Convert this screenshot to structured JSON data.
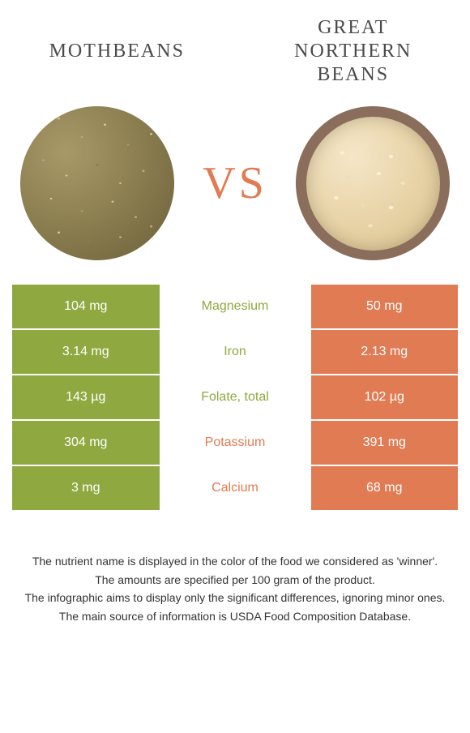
{
  "titles": {
    "left": "MOTHBEANS",
    "right": "GREAT NORTHERN BEANS"
  },
  "vs_label": "VS",
  "colors": {
    "left_bar": "#8fa83f",
    "right_bar": "#e17b54",
    "vs_text": "#e17b54",
    "winner_left": "#8fa83f",
    "winner_right": "#e17b54"
  },
  "rows": [
    {
      "left": "104 mg",
      "label": "Magnesium",
      "right": "50 mg",
      "winner": "left"
    },
    {
      "left": "3.14 mg",
      "label": "Iron",
      "right": "2.13 mg",
      "winner": "left"
    },
    {
      "left": "143 µg",
      "label": "Folate, total",
      "right": "102 µg",
      "winner": "left"
    },
    {
      "left": "304 mg",
      "label": "Potassium",
      "right": "391 mg",
      "winner": "right"
    },
    {
      "left": "3 mg",
      "label": "Calcium",
      "right": "68 mg",
      "winner": "right"
    }
  ],
  "footer": {
    "line1": "The nutrient name is displayed in the color of the food we considered as 'winner'.",
    "line2": "The amounts are specified per 100 gram of the product.",
    "line3": "The infographic aims to display only the significant differences, ignoring minor ones.",
    "line4": "The main source of information is USDA Food Composition Database."
  }
}
